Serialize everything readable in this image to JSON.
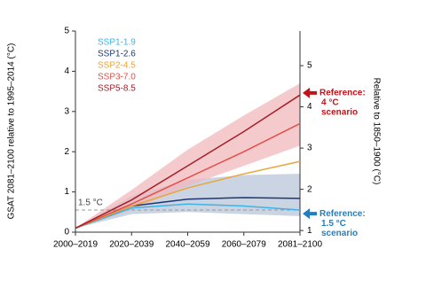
{
  "chart_data": {
    "type": "line",
    "ylabel": "GSAT 2081–2100 relative to 1995–2014 (°C)",
    "y2label": "Relative to 1850–1900 (°C)",
    "categories": [
      "2000–2019",
      "2020–2039",
      "2040–2059",
      "2060–2079",
      "2081–2100"
    ],
    "ylim": [
      0,
      5
    ],
    "yticks": [
      0,
      1,
      2,
      3,
      4,
      5
    ],
    "y2lim": [
      0.96,
      5.84
    ],
    "y2ticks": [
      1,
      2,
      3,
      4,
      5
    ],
    "series": [
      {
        "name": "SSP1-1.9",
        "color": "#3cb4e5",
        "values": [
          0.1,
          0.6,
          0.7,
          0.65,
          0.55
        ]
      },
      {
        "name": "SSP1-2.6",
        "color": "#1e3773",
        "values": [
          0.1,
          0.65,
          0.82,
          0.86,
          0.84
        ],
        "range_low": [
          0.1,
          0.45,
          0.5,
          0.45,
          0.4
        ],
        "range_high": [
          0.1,
          0.9,
          1.3,
          1.42,
          1.45
        ],
        "range_color": "#b8c6d8"
      },
      {
        "name": "SSP2-4.5",
        "color": "#eaa43a",
        "values": [
          0.1,
          0.65,
          1.1,
          1.45,
          1.76
        ]
      },
      {
        "name": "SSP3-7.0",
        "color": "#e25048",
        "values": [
          0.1,
          0.7,
          1.35,
          2.0,
          2.7
        ]
      },
      {
        "name": "SSP5-8.5",
        "color": "#a41f28",
        "values": [
          0.1,
          0.8,
          1.65,
          2.5,
          3.41
        ],
        "range_low": [
          0.1,
          0.55,
          1.15,
          1.65,
          2.15
        ],
        "range_high": [
          0.1,
          1.05,
          2.05,
          2.9,
          3.7
        ],
        "range_color": "#f2b8bc"
      }
    ],
    "threshold": {
      "value": 0.55,
      "label": "1.5 °C"
    },
    "annotations": [
      {
        "lines": [
          "Reference:",
          "4 °C",
          "scenario"
        ],
        "value": 3.46,
        "color": "#c0141b"
      },
      {
        "lines": [
          "Reference:",
          "1.5 °C",
          "scenario"
        ],
        "value": 0.46,
        "color": "#1f7fc1"
      }
    ]
  }
}
